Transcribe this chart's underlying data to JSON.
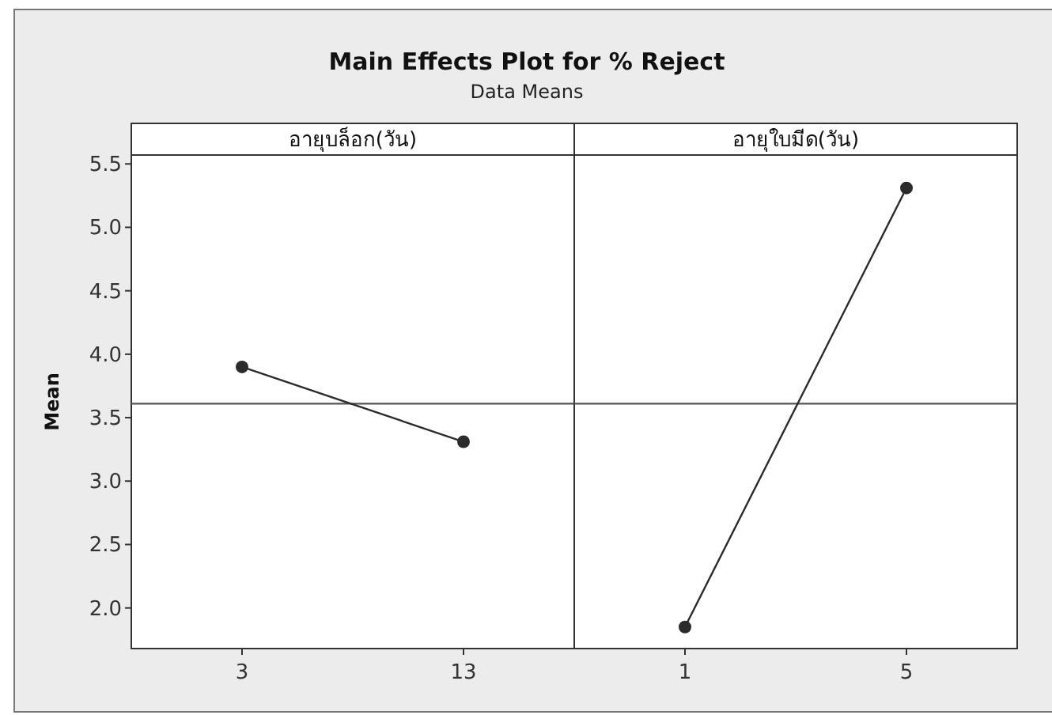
{
  "chart_data": [
    {
      "type": "line",
      "title": "Main Effects Plot for % Reject",
      "subtitle": "Data Means",
      "xlabel": "อายุบล็อก(วัน)",
      "ylabel": "Mean",
      "categories": [
        "3",
        "13"
      ],
      "values": [
        3.9,
        3.31
      ],
      "color": "#2b2b2b",
      "marker": "circle",
      "ylim": [
        1.68,
        5.57
      ],
      "yticks": [
        {
          "value": 2,
          "label": "2.0"
        },
        2.5,
        {
          "value": 3,
          "label": "3.0"
        },
        3.5,
        {
          "value": 4,
          "label": "4.0"
        },
        4.5,
        {
          "value": 5,
          "label": "5.0"
        },
        5.5
      ],
      "ref_lines": [
        {
          "axis": "y",
          "value": 3.61,
          "color": "#555555"
        }
      ]
    },
    {
      "type": "line",
      "xlabel": "อายุใบมีด(วัน)",
      "categories": [
        "1",
        "5"
      ],
      "values": [
        1.85,
        5.31
      ],
      "color": "#2b2b2b",
      "marker": "circle",
      "ylim": [
        1.68,
        5.57
      ],
      "tick_labels": "x",
      "ref_lines": [
        {
          "axis": "y",
          "value": 3.61,
          "color": "#555555"
        }
      ]
    }
  ]
}
